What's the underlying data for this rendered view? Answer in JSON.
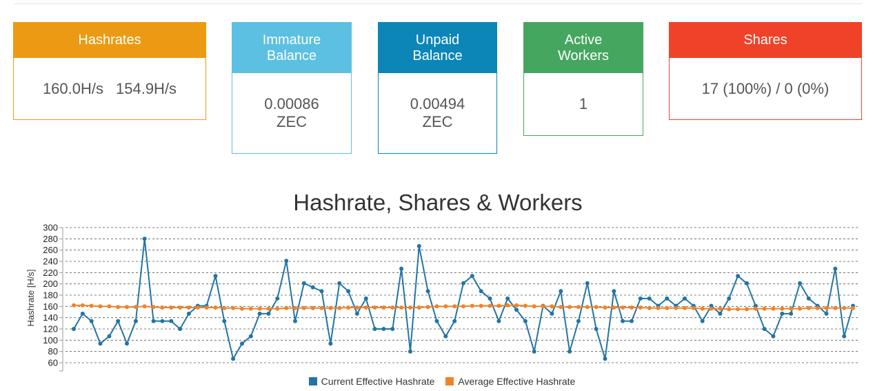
{
  "stats": {
    "hashrates": {
      "title": "Hashrates",
      "value1": "160.0H/s",
      "value2": "154.9H/s",
      "color": "#ec9a14"
    },
    "immature": {
      "title_line1": "Immature",
      "title_line2": "Balance",
      "value_line1": "0.00086",
      "value_line2": "ZEC",
      "color": "#5bc0e1"
    },
    "unpaid": {
      "title_line1": "Unpaid",
      "title_line2": "Balance",
      "value_line1": "0.00494",
      "value_line2": "ZEC",
      "color": "#0b86b7"
    },
    "workers": {
      "title_line1": "Active",
      "title_line2": "Workers",
      "value": "1",
      "color": "#45a660"
    },
    "shares": {
      "title": "Shares",
      "value": "17 (100%) / 0 (0%)",
      "color": "#f04228"
    }
  },
  "chart_data": {
    "type": "line",
    "title": "Hashrate, Shares & Workers",
    "ylabel": "Hashrate [H/s]",
    "ylim": [
      60,
      300
    ],
    "yticks": [
      60,
      80,
      100,
      120,
      140,
      160,
      180,
      200,
      220,
      240,
      260,
      280,
      300
    ],
    "grid": true,
    "legend_position": "bottom-center",
    "series": [
      {
        "name": "Current Effective Hashrate",
        "color": "#2274a5",
        "values": [
          120,
          147,
          134,
          94,
          107,
          134,
          94,
          134,
          280,
          134,
          134,
          134,
          120,
          147,
          161,
          161,
          214,
          134,
          67,
          94,
          107,
          147,
          147,
          174,
          241,
          134,
          201,
          194,
          187,
          94,
          201,
          187,
          147,
          174,
          120,
          120,
          120,
          227,
          80,
          267,
          187,
          134,
          107,
          134,
          201,
          214,
          187,
          174,
          134,
          174,
          154,
          134,
          80,
          161,
          147,
          187,
          80,
          134,
          201,
          120,
          67,
          187,
          134,
          134,
          174,
          174,
          161,
          174,
          161,
          174,
          161,
          134,
          161,
          147,
          174,
          214,
          201,
          161,
          120,
          107,
          147,
          147,
          201,
          174,
          161,
          147,
          227,
          107,
          161
        ]
      },
      {
        "name": "Average Effective Hashrate",
        "color": "#f0832a",
        "values": [
          162,
          162,
          161,
          160,
          160,
          159,
          159,
          159,
          160,
          159,
          158,
          158,
          158,
          158,
          158,
          158,
          158,
          157,
          157,
          156,
          156,
          156,
          156,
          156,
          157,
          157,
          157,
          157,
          157,
          157,
          157,
          158,
          158,
          158,
          158,
          158,
          158,
          158,
          158,
          158,
          159,
          160,
          160,
          160,
          160,
          161,
          161,
          161,
          161,
          162,
          162,
          161,
          160,
          160,
          160,
          159,
          159,
          159,
          159,
          159,
          158,
          158,
          158,
          158,
          158,
          157,
          157,
          157,
          157,
          157,
          157,
          156,
          156,
          156,
          155,
          155,
          155,
          156,
          156,
          156,
          156,
          156,
          156,
          157,
          157,
          157,
          157,
          157,
          157
        ]
      }
    ]
  }
}
